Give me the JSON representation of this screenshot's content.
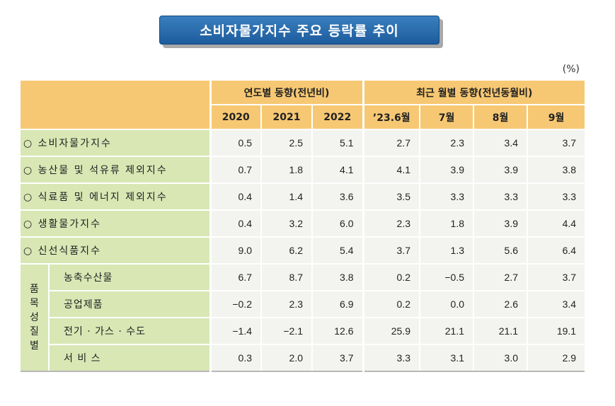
{
  "title": "소비자물가지수 주요 등락률 추이",
  "unit": "(%)",
  "header": {
    "group_annual": "연도별 동향(전년비)",
    "group_monthly": "최근 월별 동향(전년동월비)",
    "years": [
      "2020",
      "2021",
      "2022",
      "’23.6월",
      "7월",
      "8월",
      "9월"
    ]
  },
  "rows": [
    {
      "label": "○ 소비자물가지수",
      "values": [
        "0.5",
        "2.5",
        "5.1",
        "2.7",
        "2.3",
        "3.4",
        "3.7"
      ]
    },
    {
      "label": "○ 농산물 및 석유류 제외지수",
      "values": [
        "0.7",
        "1.8",
        "4.1",
        "4.1",
        "3.9",
        "3.9",
        "3.8"
      ]
    },
    {
      "label": "○ 식료품 및 에너지 제외지수",
      "values": [
        "0.4",
        "1.4",
        "3.6",
        "3.5",
        "3.3",
        "3.3",
        "3.3"
      ]
    },
    {
      "label": "○ 생활물가지수",
      "values": [
        "0.4",
        "3.2",
        "6.0",
        "2.3",
        "1.8",
        "3.9",
        "4.4"
      ]
    },
    {
      "label": "○ 신선식품지수",
      "values": [
        "9.0",
        "6.2",
        "5.4",
        "3.7",
        "1.3",
        "5.6",
        "6.4"
      ]
    }
  ],
  "group_label": [
    "품",
    "목",
    "성",
    "질",
    "별"
  ],
  "subrows": [
    {
      "label": "농축수산물",
      "values": [
        "6.7",
        "8.7",
        "3.8",
        "0.2",
        "−0.5",
        "2.7",
        "3.7"
      ]
    },
    {
      "label": "공업제품",
      "values": [
        "−0.2",
        "2.3",
        "6.9",
        "0.2",
        "0.0",
        "2.6",
        "3.4"
      ]
    },
    {
      "label": "전기 · 가스 · 수도",
      "values": [
        "−1.4",
        "−2.1",
        "12.6",
        "25.9",
        "21.1",
        "21.1",
        "19.1"
      ]
    },
    {
      "label": "서 비 스",
      "values": [
        "0.3",
        "2.0",
        "3.7",
        "3.3",
        "3.1",
        "3.0",
        "2.9"
      ]
    }
  ]
}
